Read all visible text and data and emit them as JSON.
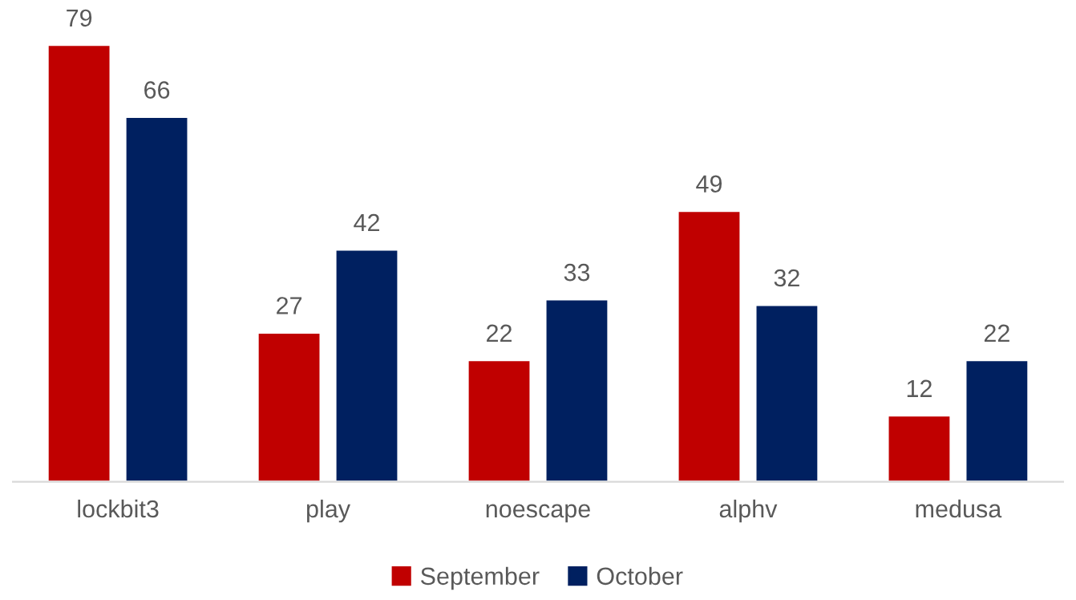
{
  "chart_data": {
    "type": "bar",
    "categories": [
      "lockbit3",
      "play",
      "noescape",
      "alphv",
      "medusa"
    ],
    "series": [
      {
        "name": "September",
        "color": "#c00000",
        "values": [
          79,
          27,
          22,
          49,
          12
        ]
      },
      {
        "name": "October",
        "color": "#002060",
        "values": [
          66,
          42,
          33,
          32,
          22
        ]
      }
    ],
    "data_labels": true,
    "legend": "bottom",
    "grid": false
  }
}
